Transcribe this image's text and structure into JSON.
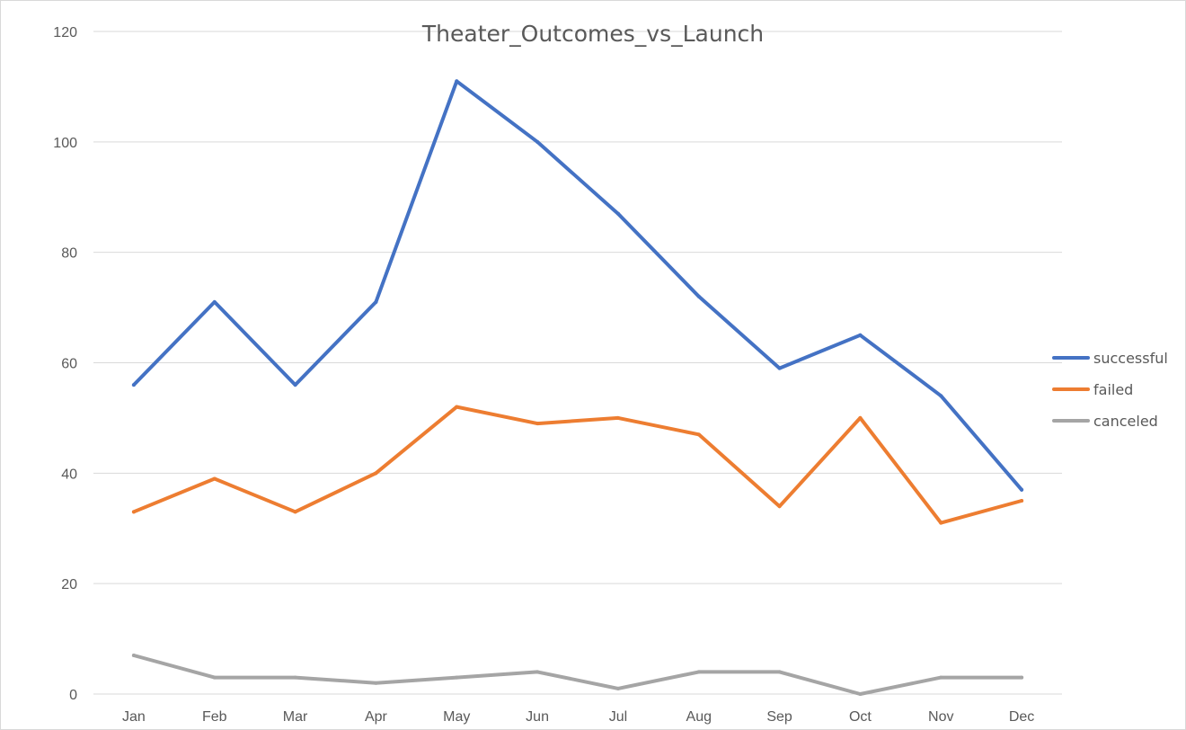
{
  "chart_data": {
    "type": "line",
    "title": "Theater_Outcomes_vs_Launch",
    "categories": [
      "Jan",
      "Feb",
      "Mar",
      "Apr",
      "May",
      "Jun",
      "Jul",
      "Aug",
      "Sep",
      "Oct",
      "Nov",
      "Dec"
    ],
    "ylim": [
      0,
      120
    ],
    "yticks": [
      0,
      20,
      40,
      60,
      80,
      100,
      120
    ],
    "grid": true,
    "legend_position": "right",
    "series": [
      {
        "name": "successful",
        "color": "#4472C4",
        "values": [
          56,
          71,
          56,
          71,
          111,
          100,
          87,
          72,
          59,
          65,
          54,
          37
        ]
      },
      {
        "name": "failed",
        "color": "#ED7D31",
        "values": [
          33,
          39,
          33,
          40,
          52,
          49,
          50,
          47,
          34,
          50,
          31,
          35
        ]
      },
      {
        "name": "canceled",
        "color": "#A5A5A5",
        "values": [
          7,
          3,
          3,
          2,
          3,
          4,
          1,
          4,
          4,
          0,
          3,
          3
        ]
      }
    ]
  }
}
